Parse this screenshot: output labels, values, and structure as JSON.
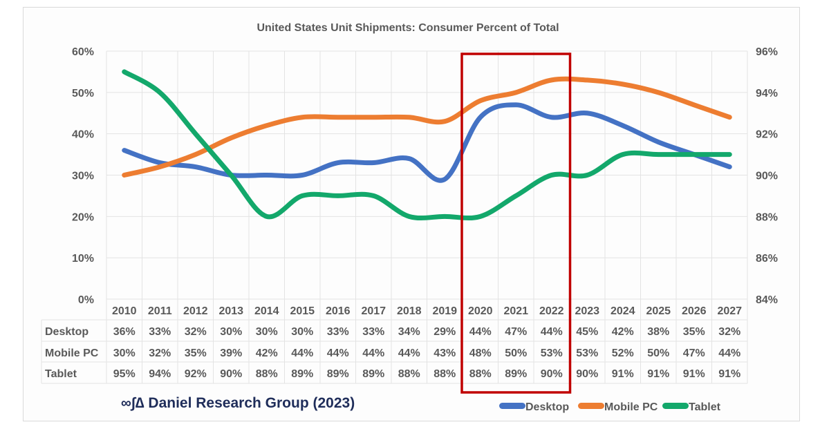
{
  "chart_data": {
    "type": "line",
    "title": "United States Unit Shipments: Consumer Percent of Total",
    "categories": [
      "2010",
      "2011",
      "2012",
      "2013",
      "2014",
      "2015",
      "2016",
      "2017",
      "2018",
      "2019",
      "2020",
      "2021",
      "2022",
      "2023",
      "2024",
      "2025",
      "2026",
      "2027"
    ],
    "left_axis": {
      "ylim": [
        0,
        60
      ],
      "ticks": [
        "0%",
        "10%",
        "20%",
        "30%",
        "40%",
        "50%",
        "60%"
      ]
    },
    "right_axis": {
      "ylim": [
        84,
        96
      ],
      "ticks": [
        "84%",
        "86%",
        "88%",
        "90%",
        "92%",
        "94%",
        "96%"
      ]
    },
    "grid": true,
    "series": [
      {
        "name": "Desktop",
        "axis": "left",
        "color": "#4472c4",
        "values": [
          36,
          33,
          32,
          30,
          30,
          30,
          33,
          33,
          34,
          29,
          44,
          47,
          44,
          45,
          42,
          38,
          35,
          32
        ]
      },
      {
        "name": "Mobile PC",
        "axis": "left",
        "color": "#ed7d31",
        "values": [
          30,
          32,
          35,
          39,
          42,
          44,
          44,
          44,
          44,
          43,
          48,
          50,
          53,
          53,
          52,
          50,
          47,
          44
        ]
      },
      {
        "name": "Tablet",
        "axis": "right",
        "color": "#13a86b",
        "values": [
          95,
          94,
          92,
          90,
          88,
          89,
          89,
          89,
          88,
          88,
          88,
          89,
          90,
          90,
          91,
          91,
          91,
          91
        ]
      }
    ],
    "highlight": {
      "from": "2020",
      "to": "2022",
      "color": "#c00000"
    },
    "legend_placement": "bottom-right",
    "data_table": true
  },
  "credit": "∞∫∆ Daniel Research Group (2023)"
}
